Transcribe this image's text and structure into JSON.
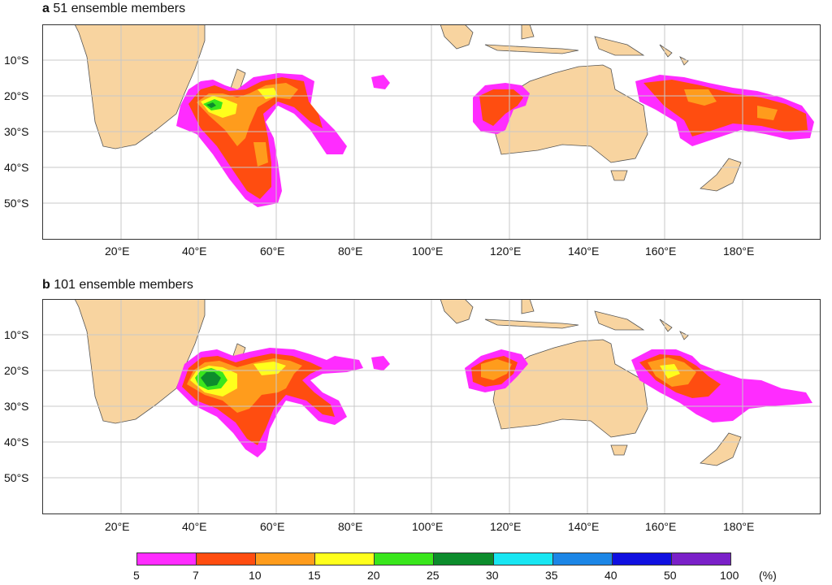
{
  "panels": [
    {
      "letter": "a",
      "title": "51 ensemble members"
    },
    {
      "letter": "b",
      "title": "101 ensemble members"
    }
  ],
  "lon_ticks": [
    "20°E",
    "40°E",
    "60°E",
    "80°E",
    "100°E",
    "120°E",
    "140°E",
    "160°E",
    "180°E"
  ],
  "lat_ticks": [
    "10°S",
    "20°S",
    "30°S",
    "40°S",
    "50°S"
  ],
  "colorbar": {
    "labels": [
      "5",
      "7",
      "10",
      "15",
      "20",
      "25",
      "30",
      "35",
      "40",
      "50",
      "100"
    ],
    "unit": "(%)",
    "colors": [
      "#ff2cff",
      "#ff4d10",
      "#ff9c1c",
      "#ffff1c",
      "#39e61c",
      "#0c8c2c",
      "#18e6f2",
      "#1c86e6",
      "#1010e0",
      "#7a20c8"
    ]
  },
  "colors": {
    "land": "#f8d4a0",
    "coast": "#555555",
    "grid": "#c8c8c8",
    "frame": "#333333"
  }
}
